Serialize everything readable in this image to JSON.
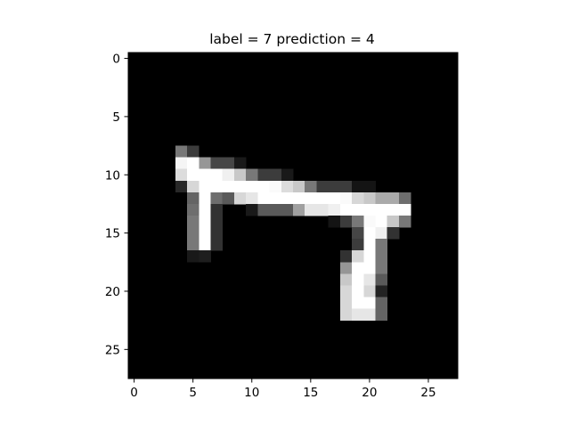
{
  "chart_data": {
    "type": "heatmap",
    "title": "label = 7 prediction = 4",
    "label": 7,
    "prediction": 4,
    "xlabel": "",
    "ylabel": "",
    "colormap": "gray",
    "value_range": [
      0,
      255
    ],
    "grid": false,
    "xlim": [
      -0.5,
      27.5
    ],
    "ylim": [
      27.5,
      -0.5
    ],
    "xticks": [
      0,
      5,
      10,
      15,
      20,
      25
    ],
    "yticks": [
      0,
      5,
      10,
      15,
      20,
      25
    ],
    "rows": 28,
    "cols": 28,
    "pixels": [
      {
        "r": 8,
        "c": 4,
        "v": 120
      },
      {
        "r": 8,
        "c": 5,
        "v": 60
      },
      {
        "r": 9,
        "c": 4,
        "v": 245
      },
      {
        "r": 9,
        "c": 5,
        "v": 255
      },
      {
        "r": 9,
        "c": 6,
        "v": 150
      },
      {
        "r": 9,
        "c": 7,
        "v": 70
      },
      {
        "r": 9,
        "c": 8,
        "v": 70
      },
      {
        "r": 9,
        "c": 9,
        "v": 25
      },
      {
        "r": 10,
        "c": 4,
        "v": 220
      },
      {
        "r": 10,
        "c": 5,
        "v": 255
      },
      {
        "r": 10,
        "c": 6,
        "v": 255
      },
      {
        "r": 10,
        "c": 7,
        "v": 255
      },
      {
        "r": 10,
        "c": 8,
        "v": 240
      },
      {
        "r": 10,
        "c": 9,
        "v": 200
      },
      {
        "r": 10,
        "c": 10,
        "v": 120
      },
      {
        "r": 10,
        "c": 11,
        "v": 60
      },
      {
        "r": 10,
        "c": 12,
        "v": 60
      },
      {
        "r": 10,
        "c": 13,
        "v": 25
      },
      {
        "r": 11,
        "c": 4,
        "v": 40
      },
      {
        "r": 11,
        "c": 5,
        "v": 215
      },
      {
        "r": 11,
        "c": 6,
        "v": 255
      },
      {
        "r": 11,
        "c": 7,
        "v": 255
      },
      {
        "r": 11,
        "c": 8,
        "v": 255
      },
      {
        "r": 11,
        "c": 9,
        "v": 255
      },
      {
        "r": 11,
        "c": 10,
        "v": 255
      },
      {
        "r": 11,
        "c": 11,
        "v": 255
      },
      {
        "r": 11,
        "c": 12,
        "v": 250
      },
      {
        "r": 11,
        "c": 13,
        "v": 220
      },
      {
        "r": 11,
        "c": 14,
        "v": 200
      },
      {
        "r": 11,
        "c": 15,
        "v": 120
      },
      {
        "r": 11,
        "c": 16,
        "v": 60
      },
      {
        "r": 11,
        "c": 17,
        "v": 60
      },
      {
        "r": 11,
        "c": 18,
        "v": 60
      },
      {
        "r": 11,
        "c": 19,
        "v": 20
      },
      {
        "r": 11,
        "c": 20,
        "v": 20
      },
      {
        "r": 12,
        "c": 5,
        "v": 100
      },
      {
        "r": 12,
        "c": 6,
        "v": 255
      },
      {
        "r": 12,
        "c": 7,
        "v": 110
      },
      {
        "r": 12,
        "c": 8,
        "v": 90
      },
      {
        "r": 12,
        "c": 9,
        "v": 215
      },
      {
        "r": 12,
        "c": 10,
        "v": 230
      },
      {
        "r": 12,
        "c": 11,
        "v": 255
      },
      {
        "r": 12,
        "c": 12,
        "v": 255
      },
      {
        "r": 12,
        "c": 13,
        "v": 255
      },
      {
        "r": 12,
        "c": 14,
        "v": 255
      },
      {
        "r": 12,
        "c": 15,
        "v": 255
      },
      {
        "r": 12,
        "c": 16,
        "v": 255
      },
      {
        "r": 12,
        "c": 17,
        "v": 255
      },
      {
        "r": 12,
        "c": 18,
        "v": 250
      },
      {
        "r": 12,
        "c": 19,
        "v": 215
      },
      {
        "r": 12,
        "c": 20,
        "v": 200
      },
      {
        "r": 12,
        "c": 21,
        "v": 170
      },
      {
        "r": 12,
        "c": 22,
        "v": 170
      },
      {
        "r": 12,
        "c": 23,
        "v": 110
      },
      {
        "r": 13,
        "c": 5,
        "v": 110
      },
      {
        "r": 13,
        "c": 6,
        "v": 255
      },
      {
        "r": 13,
        "c": 7,
        "v": 50
      },
      {
        "r": 13,
        "c": 10,
        "v": 25
      },
      {
        "r": 13,
        "c": 11,
        "v": 90
      },
      {
        "r": 13,
        "c": 12,
        "v": 90
      },
      {
        "r": 13,
        "c": 13,
        "v": 90
      },
      {
        "r": 13,
        "c": 14,
        "v": 160
      },
      {
        "r": 13,
        "c": 15,
        "v": 230
      },
      {
        "r": 13,
        "c": 16,
        "v": 230
      },
      {
        "r": 13,
        "c": 17,
        "v": 240
      },
      {
        "r": 13,
        "c": 18,
        "v": 255
      },
      {
        "r": 13,
        "c": 19,
        "v": 255
      },
      {
        "r": 13,
        "c": 20,
        "v": 255
      },
      {
        "r": 13,
        "c": 21,
        "v": 255
      },
      {
        "r": 13,
        "c": 22,
        "v": 255
      },
      {
        "r": 13,
        "c": 23,
        "v": 255
      },
      {
        "r": 14,
        "c": 5,
        "v": 120
      },
      {
        "r": 14,
        "c": 6,
        "v": 255
      },
      {
        "r": 14,
        "c": 7,
        "v": 50
      },
      {
        "r": 14,
        "c": 17,
        "v": 20
      },
      {
        "r": 14,
        "c": 18,
        "v": 60
      },
      {
        "r": 14,
        "c": 19,
        "v": 120
      },
      {
        "r": 14,
        "c": 20,
        "v": 250
      },
      {
        "r": 14,
        "c": 21,
        "v": 255
      },
      {
        "r": 14,
        "c": 22,
        "v": 200
      },
      {
        "r": 14,
        "c": 23,
        "v": 120
      },
      {
        "r": 15,
        "c": 5,
        "v": 120
      },
      {
        "r": 15,
        "c": 6,
        "v": 255
      },
      {
        "r": 15,
        "c": 7,
        "v": 50
      },
      {
        "r": 15,
        "c": 19,
        "v": 70
      },
      {
        "r": 15,
        "c": 20,
        "v": 255
      },
      {
        "r": 15,
        "c": 21,
        "v": 240
      },
      {
        "r": 15,
        "c": 22,
        "v": 50
      },
      {
        "r": 16,
        "c": 5,
        "v": 120
      },
      {
        "r": 16,
        "c": 6,
        "v": 255
      },
      {
        "r": 16,
        "c": 7,
        "v": 50
      },
      {
        "r": 16,
        "c": 19,
        "v": 60
      },
      {
        "r": 16,
        "c": 20,
        "v": 255
      },
      {
        "r": 16,
        "c": 21,
        "v": 120
      },
      {
        "r": 17,
        "c": 5,
        "v": 25
      },
      {
        "r": 17,
        "c": 6,
        "v": 30
      },
      {
        "r": 17,
        "c": 18,
        "v": 50
      },
      {
        "r": 17,
        "c": 19,
        "v": 215
      },
      {
        "r": 17,
        "c": 20,
        "v": 255
      },
      {
        "r": 17,
        "c": 21,
        "v": 120
      },
      {
        "r": 18,
        "c": 18,
        "v": 150
      },
      {
        "r": 18,
        "c": 19,
        "v": 255
      },
      {
        "r": 18,
        "c": 20,
        "v": 255
      },
      {
        "r": 18,
        "c": 21,
        "v": 120
      },
      {
        "r": 19,
        "c": 18,
        "v": 200
      },
      {
        "r": 19,
        "c": 19,
        "v": 255
      },
      {
        "r": 19,
        "c": 20,
        "v": 230
      },
      {
        "r": 19,
        "c": 21,
        "v": 90
      },
      {
        "r": 20,
        "c": 18,
        "v": 215
      },
      {
        "r": 20,
        "c": 19,
        "v": 255
      },
      {
        "r": 20,
        "c": 20,
        "v": 215
      },
      {
        "r": 20,
        "c": 21,
        "v": 35
      },
      {
        "r": 21,
        "c": 18,
        "v": 215
      },
      {
        "r": 21,
        "c": 19,
        "v": 255
      },
      {
        "r": 21,
        "c": 20,
        "v": 255
      },
      {
        "r": 21,
        "c": 21,
        "v": 100
      },
      {
        "r": 22,
        "c": 18,
        "v": 215
      },
      {
        "r": 22,
        "c": 19,
        "v": 230
      },
      {
        "r": 22,
        "c": 20,
        "v": 230
      },
      {
        "r": 22,
        "c": 21,
        "v": 100
      }
    ]
  }
}
